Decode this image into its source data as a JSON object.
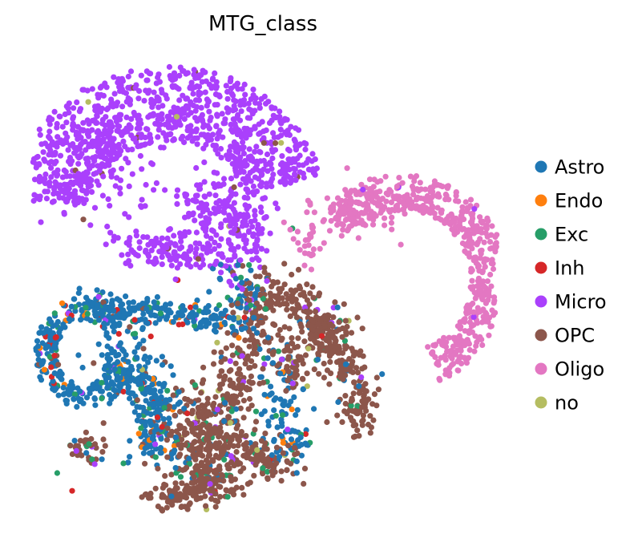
{
  "chart_data": {
    "type": "scatter",
    "title": "MTG_class",
    "xlabel": "",
    "ylabel": "",
    "grid": false,
    "axes_visible": false,
    "legend_position": "right",
    "point_count_approx": 3000,
    "series": [
      {
        "name": "Astro",
        "color": "#1f77b4"
      },
      {
        "name": "Endo",
        "color": "#ff7f0e"
      },
      {
        "name": "Exc",
        "color": "#279e68"
      },
      {
        "name": "Inh",
        "color": "#d62728"
      },
      {
        "name": "Micro",
        "color": "#aa40fc"
      },
      {
        "name": "OPC",
        "color": "#8c564b"
      },
      {
        "name": "Oligo",
        "color": "#e377c2"
      },
      {
        "name": "no",
        "color": "#b5bd61"
      }
    ]
  }
}
